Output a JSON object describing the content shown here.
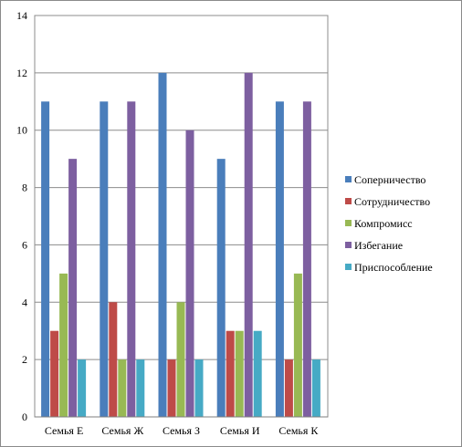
{
  "chart_data": {
    "type": "bar",
    "categories": [
      "Семья Е",
      "Семья Ж",
      "Семья З",
      "Семья И",
      "Семья К"
    ],
    "series": [
      {
        "name": "Соперничество",
        "color": "#4a7ebb",
        "values": [
          11,
          11,
          12,
          9,
          11
        ]
      },
      {
        "name": "Сотрудничество",
        "color": "#be4b48",
        "values": [
          3,
          4,
          2,
          3,
          2
        ]
      },
      {
        "name": "Компромисс",
        "color": "#98b954",
        "values": [
          5,
          2,
          4,
          3,
          5
        ]
      },
      {
        "name": "Избегание",
        "color": "#7d5fa0",
        "values": [
          9,
          11,
          10,
          12,
          11
        ]
      },
      {
        "name": "Приспособление",
        "color": "#46aac5",
        "values": [
          2,
          2,
          2,
          3,
          2
        ]
      }
    ],
    "ylim": [
      0,
      14
    ],
    "yticks": [
      0,
      2,
      4,
      6,
      8,
      10,
      12,
      14
    ],
    "grid": true,
    "legend_position": "right",
    "title": "",
    "xlabel": "",
    "ylabel": ""
  }
}
